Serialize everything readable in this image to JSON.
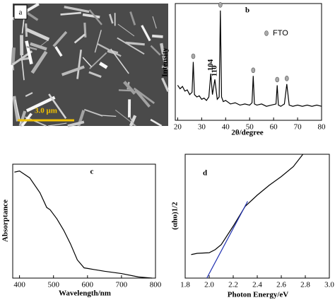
{
  "chart_data": [
    {
      "type": "image",
      "label": "a",
      "scale_bar": "3.0 μm"
    },
    {
      "type": "line",
      "label": "b",
      "xlabel": "2θ/degree",
      "ylabel": "Intensity",
      "color": "#000000",
      "x": [
        20,
        21,
        22,
        23,
        24,
        25,
        26,
        26.5,
        27,
        28,
        29,
        30,
        31,
        32,
        33,
        33.8,
        34.5,
        35.5,
        36.5,
        37.3,
        37.8,
        38.3,
        39,
        40,
        42,
        44,
        46,
        48,
        50,
        51,
        51.5,
        52,
        53,
        55,
        57,
        59,
        61,
        61.5,
        62,
        63,
        64.5,
        65.5,
        66.5,
        68,
        70,
        72,
        74,
        76,
        78,
        80
      ],
      "values": [
        30,
        27,
        29,
        25,
        26,
        22,
        24,
        50,
        22,
        20,
        21,
        18,
        19,
        17,
        20,
        40,
        22,
        35,
        18,
        20,
        94,
        20,
        16,
        17,
        14,
        15,
        13,
        14,
        13,
        15,
        38,
        14,
        13,
        14,
        12,
        13,
        14,
        30,
        13,
        12,
        14,
        31,
        13,
        12,
        13,
        12,
        13,
        12,
        13,
        12
      ],
      "xlim": [
        19,
        80
      ],
      "ylim": [
        0,
        100
      ],
      "xticks": [
        20,
        30,
        40,
        50,
        60,
        70,
        80
      ],
      "annotations": [
        {
          "text": "104",
          "x": 33.8
        },
        {
          "text": "110",
          "x": 35.5
        }
      ],
      "legend": "FTO",
      "marker_color": "#aaaaaa",
      "fto_peaks": [
        26.5,
        37.8,
        51.5,
        61.5,
        65.5
      ]
    },
    {
      "type": "line",
      "label": "c",
      "xlabel": "Wavelength/nm",
      "ylabel": "Absorptance",
      "color": "#000000",
      "x": [
        385,
        400,
        430,
        460,
        480,
        490,
        510,
        530,
        550,
        570,
        590,
        620,
        650,
        700,
        750,
        790
      ],
      "values": [
        93,
        94,
        88,
        75,
        62,
        60,
        52,
        42,
        30,
        16,
        9,
        7.5,
        6,
        4,
        1,
        0
      ],
      "xlim": [
        380,
        800
      ],
      "ylim": [
        0,
        100
      ],
      "xticks": [
        400,
        500,
        600,
        700,
        800
      ]
    },
    {
      "type": "line",
      "label": "d",
      "xlabel": "Photon Energy/eV",
      "ylabel": "(αhυ)1/2",
      "lines": [
        {
          "color": "#000000",
          "x": [
            1.85,
            1.9,
            2.0,
            2.05,
            2.1,
            2.2,
            2.3,
            2.4,
            2.5,
            2.6,
            2.7,
            2.78
          ],
          "values": [
            19,
            20,
            20.5,
            23,
            27,
            42,
            58,
            67,
            75,
            82,
            90,
            100
          ]
        },
        {
          "color": "#1f2fb0",
          "x": [
            1.98,
            2.32
          ],
          "values": [
            0,
            62
          ]
        }
      ],
      "xlim": [
        1.8,
        3.0
      ],
      "ylim": [
        0,
        100
      ],
      "xticks": [
        1.8,
        {
          "value": 2.0,
          "label": "2.0"
        },
        2.2,
        2.4,
        2.6,
        2.8,
        {
          "value": 3.0,
          "label": "3.0"
        }
      ]
    }
  ]
}
